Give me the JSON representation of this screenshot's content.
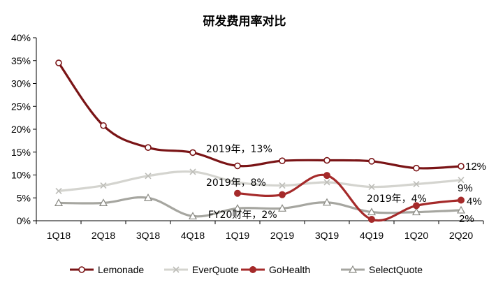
{
  "chart_data": {
    "type": "line",
    "title": "研发费用率对比",
    "categories": [
      "1Q18",
      "2Q18",
      "3Q18",
      "4Q18",
      "1Q19",
      "2Q19",
      "3Q19",
      "4Q19",
      "1Q20",
      "2Q20"
    ],
    "ylim": [
      0,
      40
    ],
    "yticks": [
      "0%",
      "5%",
      "10%",
      "15%",
      "20%",
      "25%",
      "30%",
      "35%",
      "40%"
    ],
    "series": [
      {
        "name": "Lemonade",
        "color": "#7a1416",
        "marker": "circle-open",
        "values": [
          34.5,
          20.8,
          16.0,
          14.9,
          12.0,
          13.1,
          13.2,
          13.0,
          11.5,
          11.9
        ],
        "end_label": "12%"
      },
      {
        "name": "EverQuote",
        "color": "#d4d4cf",
        "marker": "x",
        "values": [
          6.5,
          7.7,
          9.8,
          10.7,
          8.4,
          7.7,
          8.4,
          7.4,
          8.0,
          8.9
        ],
        "end_label": "9%"
      },
      {
        "name": "GoHealth",
        "color": "#a52a2a",
        "marker": "circle-filled",
        "values": [
          null,
          null,
          null,
          null,
          6.0,
          5.7,
          9.9,
          0.3,
          3.3,
          4.5
        ],
        "end_label": "4%"
      },
      {
        "name": "SelectQuote",
        "color": "#a6a6a0",
        "marker": "triangle",
        "values": [
          3.9,
          3.9,
          5.0,
          1.0,
          2.7,
          2.7,
          4.0,
          1.9,
          1.9,
          2.3
        ],
        "end_label": "2%"
      }
    ],
    "annotations": [
      "2019年，13%",
      "2019年，8%",
      "FY20财年，2%",
      "2019年，4%"
    ],
    "legend_position": "bottom"
  }
}
